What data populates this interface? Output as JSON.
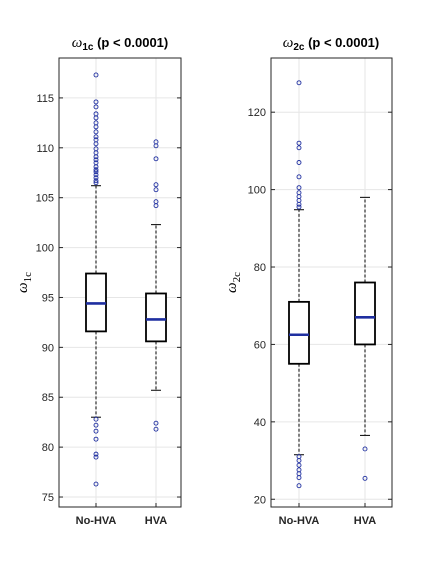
{
  "chart_data": [
    {
      "type": "box",
      "title_symbol": "ω",
      "title_subscript": "1c",
      "title_rest": " (p < 0.0001)",
      "ylabel_symbol": "ω",
      "ylabel_subscript": "1c",
      "ylim": [
        74,
        119
      ],
      "yticks": [
        75,
        80,
        85,
        90,
        95,
        100,
        105,
        110,
        115
      ],
      "grid": true,
      "categories": [
        "No-HVA",
        "HVA"
      ],
      "boxes": [
        {
          "category": "No-HVA",
          "q1": 91.6,
          "median": 94.4,
          "q3": 97.4,
          "whisker_low": 83.0,
          "whisker_high": 106.2,
          "outliers": [
            117.3,
            114.6,
            114.1,
            113.4,
            113.0,
            112.5,
            112.1,
            111.6,
            111.1,
            110.8,
            110.4,
            109.9,
            109.5,
            109.1,
            108.8,
            108.5,
            108.1,
            107.8,
            107.6,
            107.3,
            107.0,
            106.7,
            106.5,
            82.8,
            82.2,
            81.6,
            80.8,
            79.3,
            79.0,
            76.3
          ]
        },
        {
          "category": "HVA",
          "q1": 90.6,
          "median": 92.8,
          "q3": 95.4,
          "whisker_low": 85.7,
          "whisker_high": 102.3,
          "outliers": [
            110.6,
            110.2,
            108.9,
            106.3,
            105.8,
            104.6,
            104.2,
            82.4,
            81.8
          ]
        }
      ]
    },
    {
      "type": "box",
      "title_symbol": "ω",
      "title_subscript": "2c",
      "title_rest": " (p < 0.0001)",
      "ylabel_symbol": "ω",
      "ylabel_subscript": "2c",
      "ylim": [
        18,
        134
      ],
      "yticks": [
        20,
        40,
        60,
        80,
        100,
        120
      ],
      "grid": true,
      "categories": [
        "No-HVA",
        "HVA"
      ],
      "boxes": [
        {
          "category": "No-HVA",
          "q1": 55.0,
          "median": 62.5,
          "q3": 71.0,
          "whisker_low": 31.5,
          "whisker_high": 94.8,
          "outliers": [
            127.6,
            112.0,
            110.8,
            107.0,
            103.3,
            100.5,
            99.2,
            98.2,
            97.2,
            96.2,
            95.5,
            31.0,
            30.0,
            28.8,
            27.6,
            26.6,
            25.6,
            23.5
          ]
        },
        {
          "category": "HVA",
          "q1": 60.0,
          "median": 67.0,
          "q3": 76.0,
          "whisker_low": 36.5,
          "whisker_high": 98.0,
          "outliers": [
            33.0,
            25.4
          ]
        }
      ]
    }
  ],
  "colors": {
    "box_edge": "#000000",
    "median": "#1f2fa0",
    "outlier": "#1f2fa0",
    "whisker": "#000000",
    "grid": "#e6e6e6",
    "axis": "#262626"
  }
}
